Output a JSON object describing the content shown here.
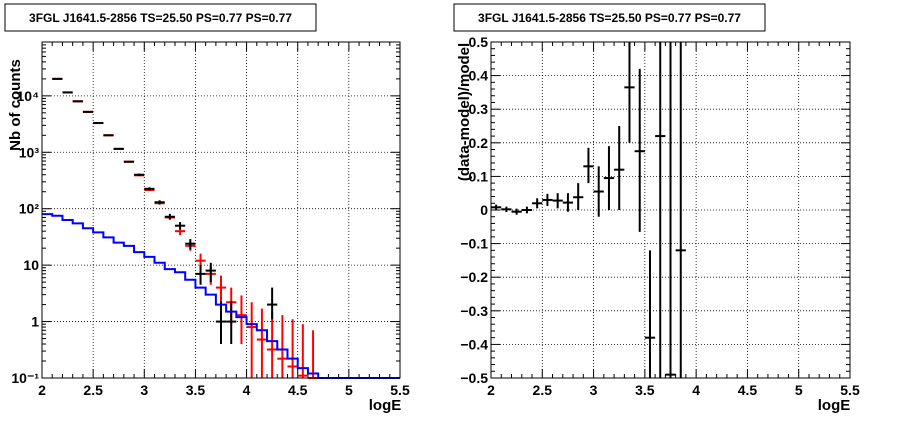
{
  "chart_data": [
    {
      "type": "line",
      "title": "3FGL J1641.5-2856 TS=25.50 PS=0.77 PS=0.77",
      "xlabel": "logE",
      "ylabel": "Nb of counts",
      "xlim": [
        2,
        5.5
      ],
      "ylim": [
        0.1,
        90000
      ],
      "yscale": "log",
      "grid": true,
      "xticks": [
        "2",
        "2.5",
        "3",
        "3.5",
        "4",
        "4.5",
        "5",
        "5.5"
      ],
      "yticks": [
        {
          "value": 0.1,
          "label": "10⁻¹"
        },
        {
          "value": 1,
          "label": "1"
        },
        {
          "value": 10,
          "label": "10"
        },
        {
          "value": 100,
          "label": "10²"
        },
        {
          "value": 1000,
          "label": "10³"
        },
        {
          "value": 10000,
          "label": "10⁴"
        }
      ],
      "series": [
        {
          "color": "#ff0000",
          "style": "errorbar",
          "points": [
            {
              "x": 2.15,
              "y": 20000,
              "ylo": 20000,
              "yhi": 20000
            },
            {
              "x": 2.25,
              "y": 11500,
              "ylo": 11500,
              "yhi": 11500
            },
            {
              "x": 2.35,
              "y": 8000,
              "ylo": 8000,
              "yhi": 8000
            },
            {
              "x": 2.45,
              "y": 5200,
              "ylo": 5200,
              "yhi": 5200
            },
            {
              "x": 2.55,
              "y": 3300,
              "ylo": 3300,
              "yhi": 3300
            },
            {
              "x": 2.65,
              "y": 2000,
              "ylo": 2000,
              "yhi": 2000
            },
            {
              "x": 2.75,
              "y": 1150,
              "ylo": 1150,
              "yhi": 1150
            },
            {
              "x": 2.85,
              "y": 680,
              "ylo": 680,
              "yhi": 680
            },
            {
              "x": 2.95,
              "y": 390,
              "ylo": 390,
              "yhi": 390
            },
            {
              "x": 3.05,
              "y": 215,
              "ylo": 215,
              "yhi": 215
            },
            {
              "x": 3.15,
              "y": 125,
              "ylo": 118,
              "yhi": 132
            },
            {
              "x": 3.25,
              "y": 70,
              "ylo": 64,
              "yhi": 76
            },
            {
              "x": 3.35,
              "y": 40,
              "ylo": 34,
              "yhi": 46
            },
            {
              "x": 3.45,
              "y": 22,
              "ylo": 18,
              "yhi": 27
            },
            {
              "x": 3.55,
              "y": 12,
              "ylo": 9,
              "yhi": 16
            },
            {
              "x": 3.65,
              "y": 7,
              "ylo": 4.5,
              "yhi": 10
            },
            {
              "x": 3.75,
              "y": 4,
              "ylo": 2.2,
              "yhi": 6.5
            },
            {
              "x": 3.85,
              "y": 2.2,
              "ylo": 0.9,
              "yhi": 4
            },
            {
              "x": 3.95,
              "y": 1.3,
              "ylo": 0.4,
              "yhi": 2.9
            },
            {
              "x": 4.05,
              "y": 0.8,
              "ylo": 0.1,
              "yhi": 2.2
            },
            {
              "x": 4.15,
              "y": 0.48,
              "ylo": 0.1,
              "yhi": 1.7
            },
            {
              "x": 4.25,
              "y": 0.32,
              "ylo": 0.1,
              "yhi": 1.5
            },
            {
              "x": 4.35,
              "y": 0.22,
              "ylo": 0.1,
              "yhi": 1.3
            },
            {
              "x": 4.45,
              "y": 0.16,
              "ylo": 0.1,
              "yhi": 1.1
            },
            {
              "x": 4.55,
              "y": 0.11,
              "ylo": 0.1,
              "yhi": 0.9
            },
            {
              "x": 4.65,
              "y": 0.1,
              "ylo": 0.1,
              "yhi": 0.7
            }
          ]
        },
        {
          "color": "#000000",
          "style": "errorbar",
          "points": [
            {
              "x": 2.15,
              "y": 20000,
              "ylo": 20000,
              "yhi": 20000
            },
            {
              "x": 2.25,
              "y": 11500,
              "ylo": 11500,
              "yhi": 11500
            },
            {
              "x": 2.35,
              "y": 8000,
              "ylo": 8000,
              "yhi": 8000
            },
            {
              "x": 2.45,
              "y": 5200,
              "ylo": 5200,
              "yhi": 5200
            },
            {
              "x": 2.55,
              "y": 3300,
              "ylo": 3300,
              "yhi": 3300
            },
            {
              "x": 2.65,
              "y": 2000,
              "ylo": 2000,
              "yhi": 2000
            },
            {
              "x": 2.75,
              "y": 1150,
              "ylo": 1150,
              "yhi": 1150
            },
            {
              "x": 2.85,
              "y": 680,
              "ylo": 680,
              "yhi": 680
            },
            {
              "x": 2.95,
              "y": 400,
              "ylo": 380,
              "yhi": 420
            },
            {
              "x": 3.05,
              "y": 225,
              "ylo": 210,
              "yhi": 240
            },
            {
              "x": 3.15,
              "y": 130,
              "ylo": 120,
              "yhi": 141
            },
            {
              "x": 3.25,
              "y": 72,
              "ylo": 64,
              "yhi": 81
            },
            {
              "x": 3.35,
              "y": 50,
              "ylo": 43,
              "yhi": 58
            },
            {
              "x": 3.45,
              "y": 24,
              "ylo": 19,
              "yhi": 29
            },
            {
              "x": 3.55,
              "y": 7,
              "ylo": 4.5,
              "yhi": 10
            },
            {
              "x": 3.65,
              "y": 8,
              "ylo": 5,
              "yhi": 11
            },
            {
              "x": 3.75,
              "y": 1,
              "ylo": 0.4,
              "yhi": 2.3
            },
            {
              "x": 3.85,
              "y": 1,
              "ylo": 0.4,
              "yhi": 2.3
            },
            {
              "x": 4.25,
              "y": 2,
              "ylo": 1.1,
              "yhi": 4
            }
          ]
        },
        {
          "color": "#0000ff",
          "style": "step",
          "bin_edges": [
            2.0,
            2.1,
            2.2,
            2.3,
            2.4,
            2.5,
            2.6,
            2.7,
            2.8,
            2.9,
            3.0,
            3.1,
            3.2,
            3.3,
            3.4,
            3.5,
            3.6,
            3.7,
            3.8,
            3.9,
            4.0,
            4.1,
            4.2,
            4.3,
            4.4,
            4.5,
            4.6,
            4.7,
            5.5
          ],
          "values": [
            80,
            75,
            63,
            55,
            45,
            38,
            31,
            25,
            22,
            17,
            14,
            11,
            8.5,
            7.5,
            5.5,
            4,
            3,
            2,
            1.5,
            1.2,
            0.9,
            0.7,
            0.45,
            0.32,
            0.22,
            0.15,
            0.12,
            0.1
          ]
        }
      ]
    },
    {
      "type": "scatter",
      "title": "3FGL J1641.5-2856 TS=25.50 PS=0.77 PS=0.77",
      "xlabel": "logE",
      "ylabel": "(data-model)/model",
      "xlim": [
        2,
        5.5
      ],
      "ylim": [
        -0.5,
        0.5
      ],
      "grid": true,
      "xticks": [
        "2",
        "2.5",
        "3",
        "3.5",
        "4",
        "4.5",
        "5",
        "5.5"
      ],
      "yticks": [
        "−0.5",
        "−0.4",
        "−0.3",
        "−0.2",
        "−0.1",
        "0",
        "0.1",
        "0.2",
        "0.3",
        "0.4",
        "0.5"
      ],
      "series": [
        {
          "color": "#000000",
          "style": "errorbar",
          "points": [
            {
              "x": 2.05,
              "y": 0.008,
              "ylo": 0.0,
              "yhi": 0.016
            },
            {
              "x": 2.15,
              "y": 0.002,
              "ylo": -0.006,
              "yhi": 0.01
            },
            {
              "x": 2.25,
              "y": -0.005,
              "ylo": -0.014,
              "yhi": 0.004
            },
            {
              "x": 2.35,
              "y": 0.0,
              "ylo": -0.01,
              "yhi": 0.01
            },
            {
              "x": 2.45,
              "y": 0.02,
              "ylo": 0.005,
              "yhi": 0.035
            },
            {
              "x": 2.55,
              "y": 0.03,
              "ylo": 0.012,
              "yhi": 0.048
            },
            {
              "x": 2.65,
              "y": 0.028,
              "ylo": 0.005,
              "yhi": 0.05
            },
            {
              "x": 2.75,
              "y": 0.022,
              "ylo": -0.005,
              "yhi": 0.05
            },
            {
              "x": 2.85,
              "y": 0.038,
              "ylo": 0.0,
              "yhi": 0.08
            },
            {
              "x": 2.95,
              "y": 0.13,
              "ylo": 0.08,
              "yhi": 0.185
            },
            {
              "x": 3.05,
              "y": 0.055,
              "ylo": -0.02,
              "yhi": 0.13
            },
            {
              "x": 3.15,
              "y": 0.095,
              "ylo": 0.0,
              "yhi": 0.19
            },
            {
              "x": 3.25,
              "y": 0.12,
              "ylo": 0.0,
              "yhi": 0.25
            },
            {
              "x": 3.35,
              "y": 0.365,
              "ylo": 0.2,
              "yhi": 0.5
            },
            {
              "x": 3.45,
              "y": 0.175,
              "ylo": -0.065,
              "yhi": 0.42
            },
            {
              "x": 3.55,
              "y": -0.38,
              "ylo": -0.5,
              "yhi": -0.12
            },
            {
              "x": 3.65,
              "y": 0.22,
              "ylo": -0.5,
              "yhi": 0.5
            },
            {
              "x": 3.75,
              "y": -0.49,
              "ylo": -0.5,
              "yhi": 0.5
            },
            {
              "x": 3.85,
              "y": -0.12,
              "ylo": -0.5,
              "yhi": 0.5
            }
          ]
        }
      ]
    }
  ]
}
